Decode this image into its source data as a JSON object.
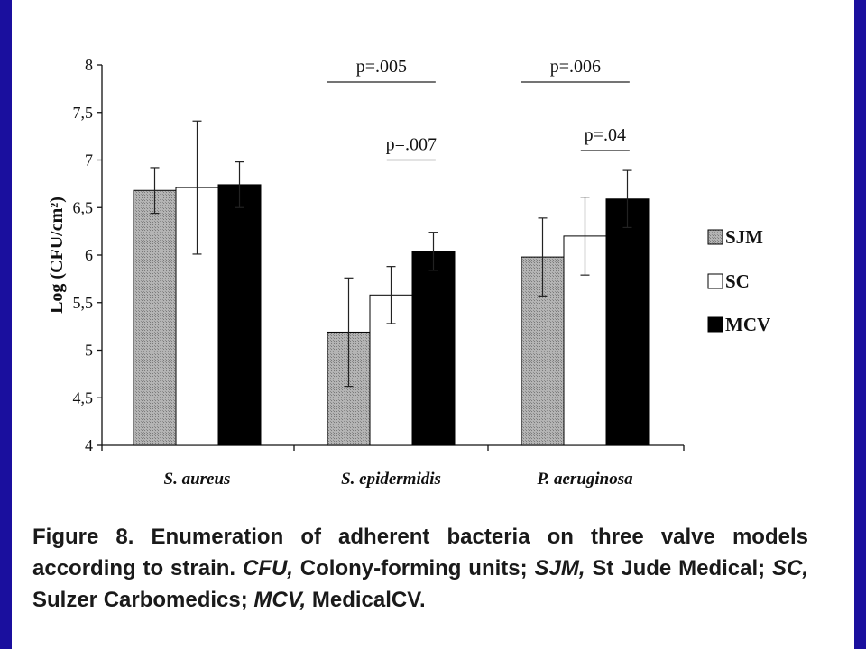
{
  "colors": {
    "frame": "#1a0f9e",
    "SJM": "#a9a9a9",
    "SC": "#ffffff",
    "MCV": "#000000",
    "text": "#1a1a1a"
  },
  "chart_data": {
    "type": "bar",
    "title": "",
    "xlabel": "",
    "ylabel": "Log (CFU/cm²)",
    "ylim": [
      4,
      8
    ],
    "yticks": [
      "4",
      "4,5",
      "5",
      "5,5",
      "6",
      "6,5",
      "7",
      "7,5",
      "8"
    ],
    "ytick_values": [
      4,
      4.5,
      5,
      5.5,
      6,
      6.5,
      7,
      7.5,
      8
    ],
    "categories": [
      "S. aureus",
      "S. epidermidis",
      "P. aeruginosa"
    ],
    "series": [
      {
        "name": "SJM",
        "values": [
          6.68,
          5.19,
          5.98
        ],
        "error": [
          0.24,
          0.57,
          0.41
        ],
        "pattern": "hatched-gray"
      },
      {
        "name": "SC",
        "values": [
          6.71,
          5.58,
          6.2
        ],
        "error": [
          0.7,
          0.3,
          0.41
        ],
        "pattern": "white"
      },
      {
        "name": "MCV",
        "values": [
          6.74,
          6.04,
          6.59
        ],
        "error": [
          0.24,
          0.2,
          0.3
        ],
        "pattern": "black"
      }
    ],
    "annotations": [
      {
        "text": "p=.005",
        "category": 1,
        "from": "SJM",
        "to": "MCV",
        "level": 7.82
      },
      {
        "text": "p=.007",
        "category": 1,
        "from": "SC",
        "to": "MCV",
        "level": 7.0
      },
      {
        "text": "p=.006",
        "category": 2,
        "from": "SJM",
        "to": "MCV",
        "level": 7.82
      },
      {
        "text": "p=.04",
        "category": 2,
        "from": "SC",
        "to": "MCV",
        "level": 7.1
      }
    ],
    "legend_position": "right",
    "grid": false
  },
  "caption": {
    "label": "Figure 8.",
    "text1": " Enumeration of adherent bacteria on three valve models according to strain. ",
    "cfu_abbr": "CFU,",
    "cfu_def": " Colony-forming units; ",
    "sjm_abbr": "SJM,",
    "sjm_def": " St Jude Medical; ",
    "sc_abbr": "SC,",
    "sc_def": " Sulzer Carbomedics; ",
    "mcv_abbr": "MCV,",
    "mcv_def": " MedicalCV."
  }
}
